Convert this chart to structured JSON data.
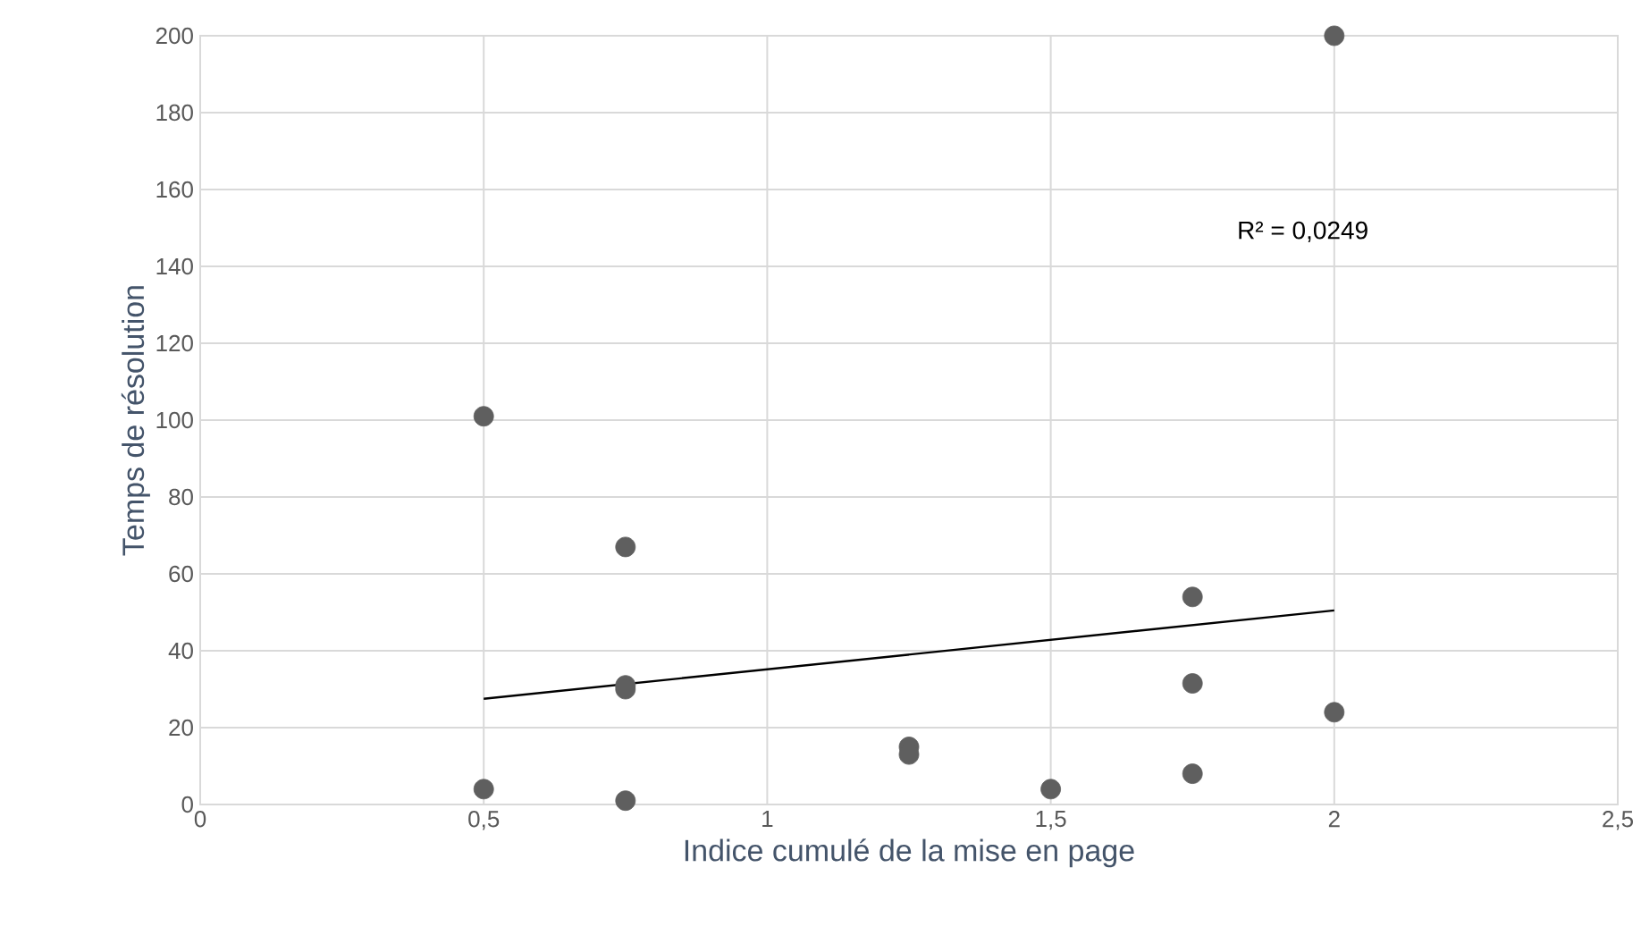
{
  "chart_data": {
    "type": "scatter",
    "xlabel": "Indice cumulé de la mise en page",
    "ylabel": "Temps de résolution",
    "xlim": [
      0,
      2.5
    ],
    "xticks": [
      {
        "value": 0,
        "label": "0"
      },
      {
        "value": 0.5,
        "label": "0,5"
      },
      {
        "value": 1,
        "label": "1"
      },
      {
        "value": 1.5,
        "label": "1,5"
      },
      {
        "value": 2,
        "label": "2"
      },
      {
        "value": 2.5,
        "label": "2,5"
      }
    ],
    "ylim": [
      0,
      200
    ],
    "yticks": [
      0,
      20,
      40,
      60,
      80,
      100,
      120,
      140,
      160,
      180,
      200
    ],
    "grid": true,
    "annotations": [
      "R² = 0,0249"
    ],
    "series": [
      {
        "marker": "circle",
        "color": "#5f5f5f",
        "x": [
          0.5,
          0.5,
          0.75,
          0.75,
          0.75,
          0.75,
          1.25,
          1.25,
          1.5,
          1.75,
          1.75,
          1.75,
          2,
          2
        ],
        "values": [
          101,
          4,
          67,
          31,
          30,
          1,
          15,
          13,
          4,
          54,
          31.5,
          8,
          200,
          24
        ]
      },
      {
        "type": "line",
        "marker": "none",
        "line_style": "solid",
        "color": "#000000",
        "x": [
          0.5,
          2
        ],
        "values": [
          27.5,
          50.5
        ]
      }
    ]
  }
}
